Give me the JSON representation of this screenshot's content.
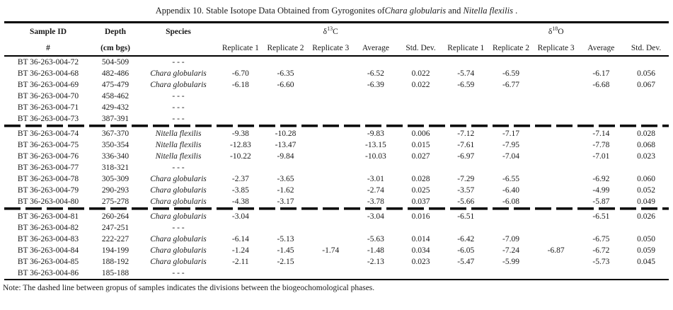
{
  "title": {
    "prefix": "Appendix 10. Stable Isotope Data Obtained from Gyrogonites of",
    "species_1": "Chara globularis",
    "connector": " and ",
    "species_2": "Nitella flexilis",
    "suffix": " ."
  },
  "table": {
    "header": {
      "sample_id": {
        "line1": "Sample ID",
        "line2": "#"
      },
      "depth": {
        "line1": "Depth",
        "line2": "(cm bgs)"
      },
      "species": {
        "line1": "Species",
        "line2": ""
      },
      "c13": {
        "delta": "δ",
        "sup": "13",
        "symbol": "C"
      },
      "o18": {
        "delta": "δ",
        "sup": "18",
        "symbol": "O"
      },
      "subheaders": [
        "Replicate 1",
        "Replicate 2",
        "Replicate 3",
        "Average",
        "Std. Dev."
      ]
    },
    "no_data_marker": "- - -",
    "phase_divider_after_rows": [
      5,
      12
    ],
    "rows": [
      [
        "BT 36-263-004-72",
        "504-509",
        "- - -",
        "",
        "",
        "",
        "",
        "",
        "",
        "",
        "",
        "",
        ""
      ],
      [
        "BT 36-263-004-68",
        "482-486",
        "Chara globularis",
        "-6.70",
        "-6.35",
        "",
        "-6.52",
        "0.022",
        "-5.74",
        "-6.59",
        "",
        "-6.17",
        "0.056"
      ],
      [
        "BT 36-263-004-69",
        "475-479",
        "Chara globularis",
        "-6.18",
        "-6.60",
        "",
        "-6.39",
        "0.022",
        "-6.59",
        "-6.77",
        "",
        "-6.68",
        "0.067"
      ],
      [
        "BT 36-263-004-70",
        "458-462",
        "- - -",
        "",
        "",
        "",
        "",
        "",
        "",
        "",
        "",
        "",
        ""
      ],
      [
        "BT 36-263-004-71",
        "429-432",
        "- - -",
        "",
        "",
        "",
        "",
        "",
        "",
        "",
        "",
        "",
        ""
      ],
      [
        "BT 36-263-004-73",
        "387-391",
        "- - -",
        "",
        "",
        "",
        "",
        "",
        "",
        "",
        "",
        "",
        ""
      ],
      [
        "BT 36-263-004-74",
        "367-370",
        "Nitella flexilis",
        "-9.38",
        "-10.28",
        "",
        "-9.83",
        "0.006",
        "-7.12",
        "-7.17",
        "",
        "-7.14",
        "0.028"
      ],
      [
        "BT 36-263-004-75",
        "350-354",
        "Nitella flexilis",
        "-12.83",
        "-13.47",
        "",
        "-13.15",
        "0.015",
        "-7.61",
        "-7.95",
        "",
        "-7.78",
        "0.068"
      ],
      [
        "BT 36-263-004-76",
        "336-340",
        "Nitella flexilis",
        "-10.22",
        "-9.84",
        "",
        "-10.03",
        "0.027",
        "-6.97",
        "-7.04",
        "",
        "-7.01",
        "0.023"
      ],
      [
        "BT 36-263-004-77",
        "318-321",
        "- - -",
        "",
        "",
        "",
        "",
        "",
        "",
        "",
        "",
        "",
        ""
      ],
      [
        "BT 36-263-004-78",
        "305-309",
        "Chara globularis",
        "-2.37",
        "-3.65",
        "",
        "-3.01",
        "0.028",
        "-7.29",
        "-6.55",
        "",
        "-6.92",
        "0.060"
      ],
      [
        "BT 36-263-004-79",
        "290-293",
        "Chara globularis",
        "-3.85",
        "-1.62",
        "",
        "-2.74",
        "0.025",
        "-3.57",
        "-6.40",
        "",
        "-4.99",
        "0.052"
      ],
      [
        "BT 36-263-004-80",
        "275-278",
        "Chara globularis",
        "-4.38",
        "-3.17",
        "",
        "-3.78",
        "0.037",
        "-5.66",
        "-6.08",
        "",
        "-5.87",
        "0.049"
      ],
      [
        "BT 36-263-004-81",
        "260-264",
        "Chara globularis",
        "-3.04",
        "",
        "",
        "-3.04",
        "0.016",
        "-6.51",
        "",
        "",
        "-6.51",
        "0.026"
      ],
      [
        "BT 36-263-004-82",
        "247-251",
        "- - -",
        "",
        "",
        "",
        "",
        "",
        "",
        "",
        "",
        "",
        ""
      ],
      [
        "BT 36-263-004-83",
        "222-227",
        "Chara globularis",
        "-6.14",
        "-5.13",
        "",
        "-5.63",
        "0.014",
        "-6.42",
        "-7.09",
        "",
        "-6.75",
        "0.050"
      ],
      [
        "BT 36-263-004-84",
        "194-199",
        "Chara globularis",
        "-1.24",
        "-1.45",
        "-1.74",
        "-1.48",
        "0.034",
        "-6.05",
        "-7.24",
        "-6.87",
        "-6.72",
        "0.059"
      ],
      [
        "BT 36-263-004-85",
        "188-192",
        "Chara globularis",
        "-2.11",
        "-2.15",
        "",
        "-2.13",
        "0.023",
        "-5.47",
        "-5.99",
        "",
        "-5.73",
        "0.045"
      ],
      [
        "BT 36-263-004-86",
        "185-188",
        "- - -",
        "",
        "",
        "",
        "",
        "",
        "",
        "",
        "",
        "",
        ""
      ]
    ]
  },
  "note": "Note: The dashed line between gropus of samples indicates the divisions between the biogeochomological phases."
}
